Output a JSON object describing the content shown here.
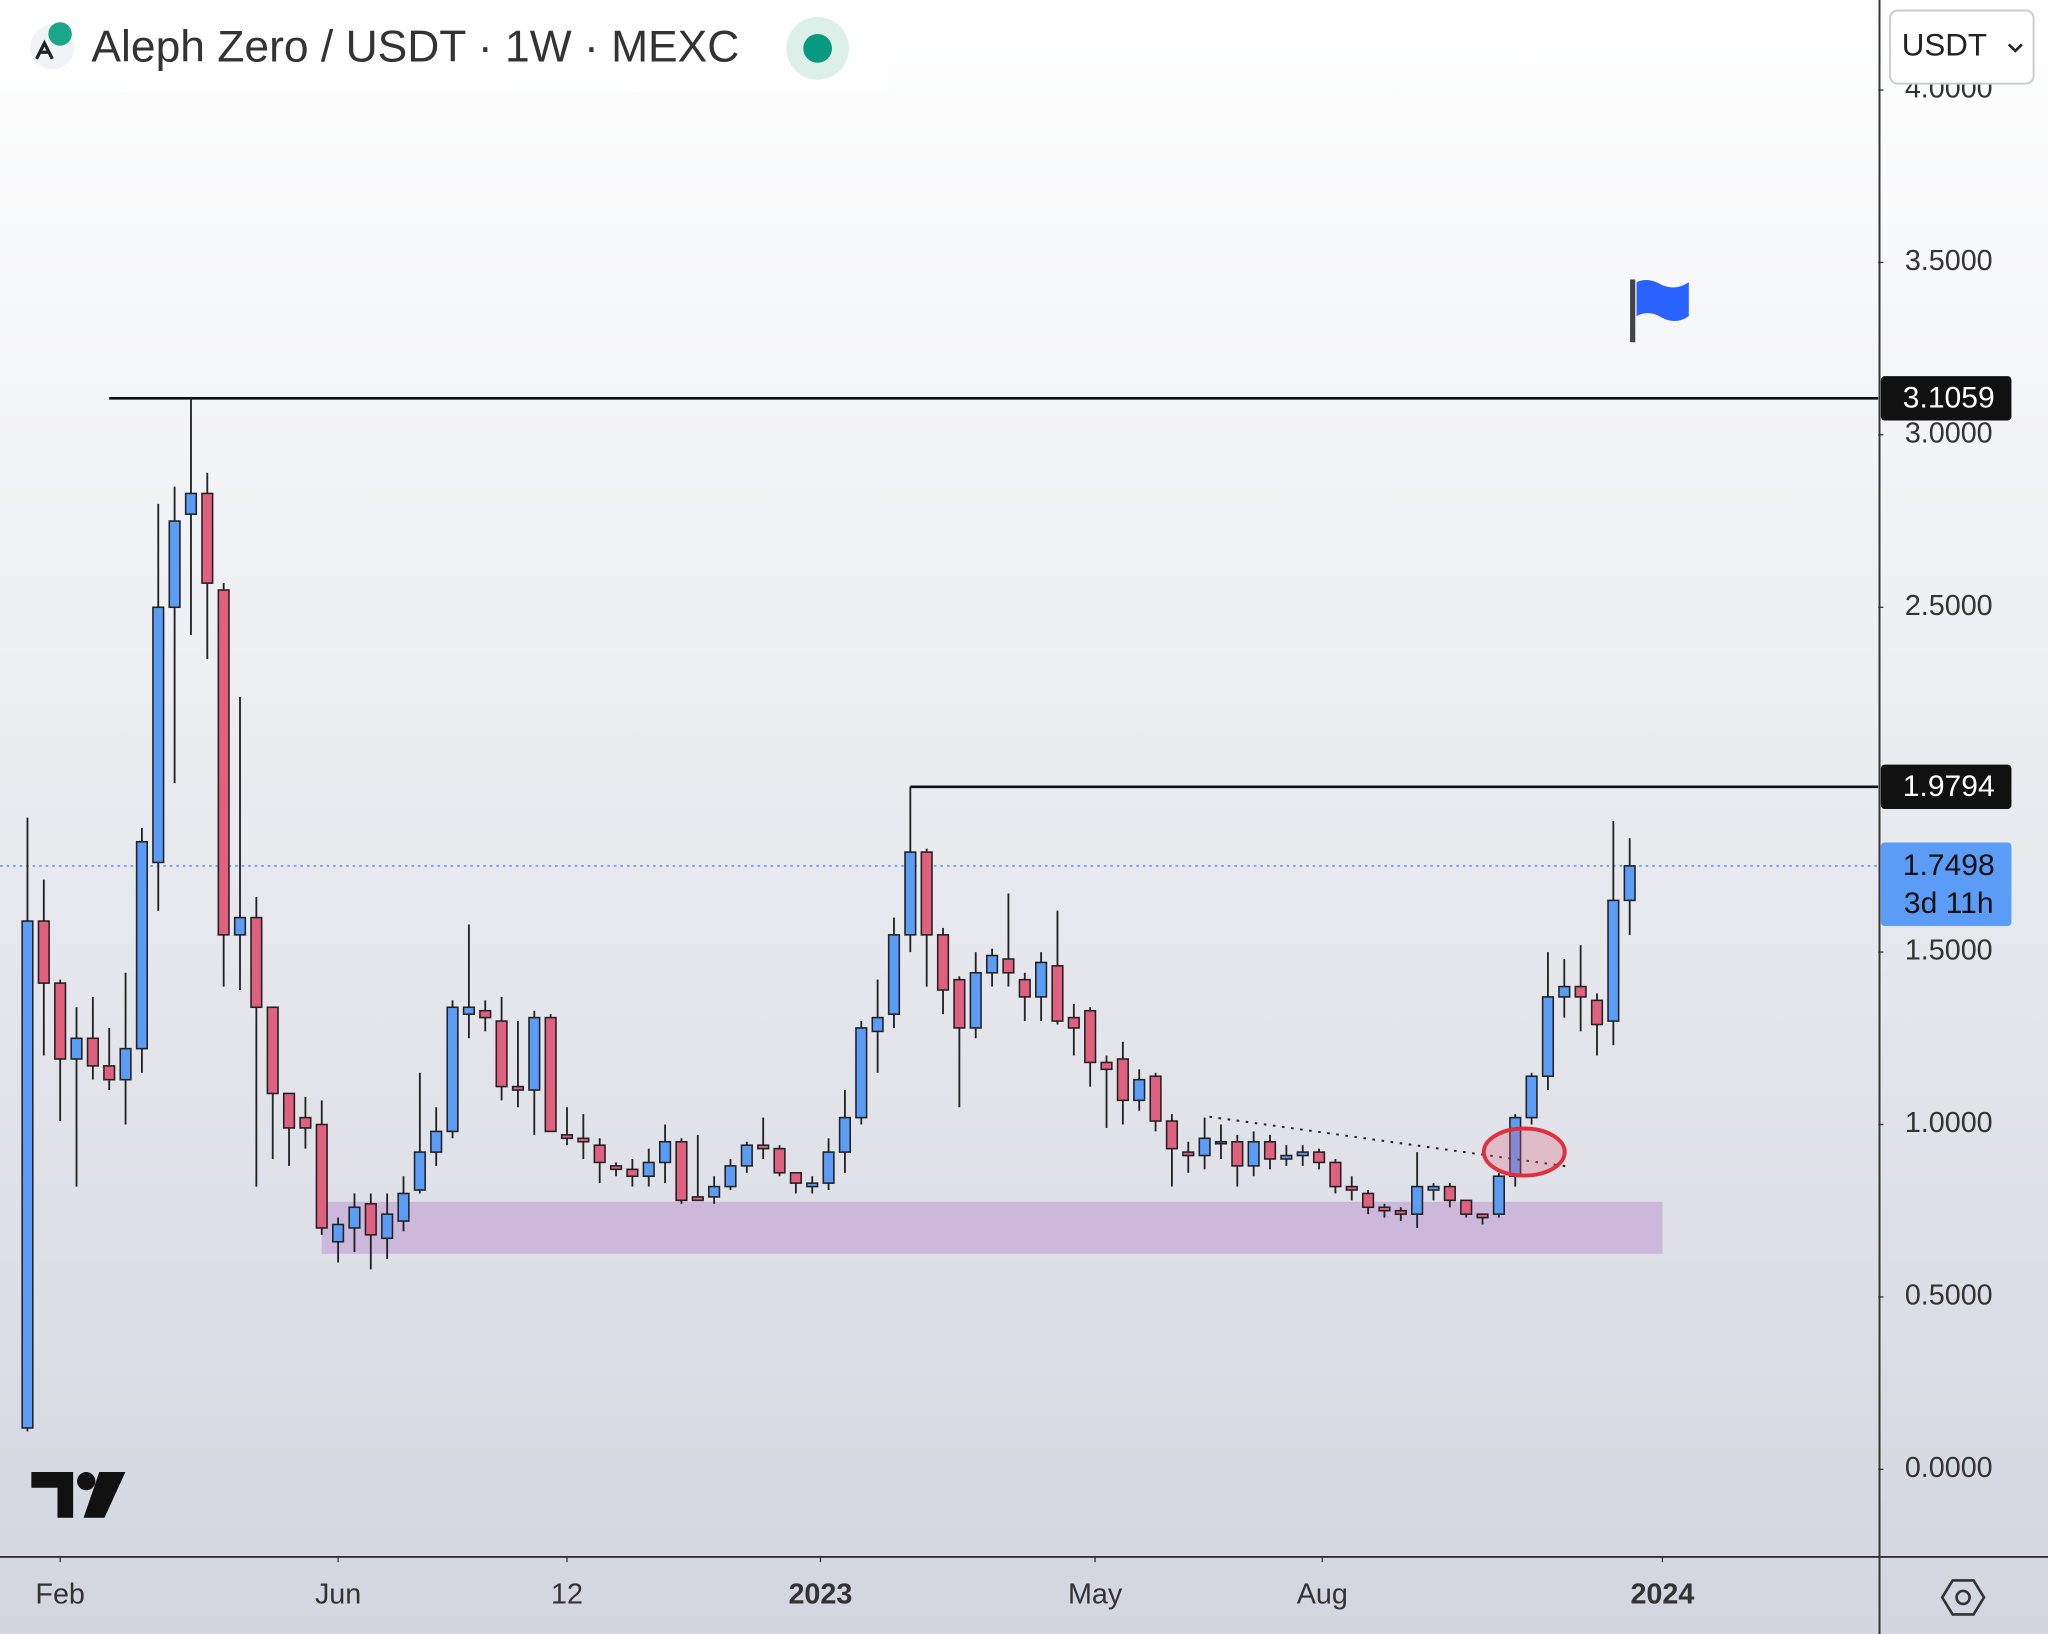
{
  "chart_data": {
    "type": "candlestick",
    "title": "Aleph Zero / USDT · 1W · MEXC",
    "currency": "USDT",
    "up_color": "#5b9cf6",
    "down_color": "#e0617f",
    "xlim": [
      -1.68,
      113.2
    ],
    "xticks": [
      {
        "value": 2,
        "label": "Feb"
      },
      {
        "value": 19,
        "label": "Jun"
      },
      {
        "value": 33,
        "label": "12"
      },
      {
        "value": 48.5,
        "label": "2023",
        "bold": true
      },
      {
        "value": 65.3,
        "label": "May"
      },
      {
        "value": 79.2,
        "label": "Aug"
      },
      {
        "value": 100,
        "label": "2024",
        "bold": true
      }
    ],
    "ylim": [
      -0.254,
      4.261
    ],
    "yticks": [
      {
        "value": 0,
        "label": "0.0000"
      },
      {
        "value": 0.5,
        "label": "0.5000"
      },
      {
        "value": 1,
        "label": "1.0000"
      },
      {
        "value": 1.5,
        "label": "1.5000"
      },
      {
        "value": 2.5,
        "label": "2.5000"
      },
      {
        "value": 3,
        "label": "3.0000"
      },
      {
        "value": 3.5,
        "label": "3.5000"
      },
      {
        "value": 4,
        "label": "4.0000"
      }
    ],
    "open": [
      0.12,
      1.59,
      1.41,
      1.19,
      1.25,
      1.17,
      1.13,
      1.22,
      1.76,
      2.5,
      2.77,
      2.83,
      2.55,
      1.55,
      1.6,
      1.34,
      1.09,
      1.02,
      1.0,
      0.66,
      0.7,
      0.77,
      0.67,
      0.72,
      0.81,
      0.92,
      0.98,
      1.32,
      1.33,
      1.3,
      1.11,
      1.1,
      1.31,
      0.97,
      0.96,
      0.94,
      0.88,
      0.87,
      0.85,
      0.89,
      0.95,
      0.79,
      0.79,
      0.82,
      0.88,
      0.94,
      0.93,
      0.86,
      0.82,
      0.83,
      0.92,
      1.02,
      1.27,
      1.32,
      1.55,
      1.79,
      1.55,
      1.42,
      1.28,
      1.44,
      1.48,
      1.42,
      1.37,
      1.46,
      1.31,
      1.33,
      1.18,
      1.19,
      1.07,
      1.14,
      1.01,
      0.92,
      0.91,
      0.95,
      0.95,
      0.88,
      0.95,
      0.9,
      0.91,
      0.92,
      0.89,
      0.82,
      0.8,
      0.76,
      0.75,
      0.74,
      0.81,
      0.82,
      0.78,
      0.74,
      0.74,
      0.85,
      1.02,
      1.14,
      1.37,
      1.4,
      1.36,
      1.3,
      1.65
    ],
    "high": [
      1.89,
      1.71,
      1.42,
      1.34,
      1.37,
      1.28,
      1.44,
      1.86,
      2.8,
      2.85,
      3.11,
      2.89,
      2.57,
      2.24,
      1.66,
      1.34,
      1.09,
      1.08,
      1.07,
      0.73,
      0.8,
      0.8,
      0.8,
      0.85,
      1.15,
      1.05,
      1.36,
      1.58,
      1.36,
      1.37,
      1.3,
      1.33,
      1.32,
      1.05,
      1.03,
      0.96,
      0.89,
      0.9,
      0.93,
      1.0,
      0.96,
      0.97,
      0.85,
      0.9,
      0.95,
      1.02,
      0.94,
      0.86,
      0.85,
      0.96,
      1.1,
      1.3,
      1.42,
      1.6,
      1.98,
      1.8,
      1.57,
      1.43,
      1.5,
      1.51,
      1.67,
      1.44,
      1.5,
      1.62,
      1.35,
      1.34,
      1.2,
      1.24,
      1.16,
      1.15,
      1.03,
      0.95,
      1.02,
      1.0,
      0.97,
      0.98,
      0.97,
      0.94,
      0.94,
      0.93,
      0.9,
      0.85,
      0.81,
      0.77,
      0.76,
      0.92,
      0.83,
      0.83,
      0.78,
      0.74,
      0.86,
      1.03,
      1.15,
      1.5,
      1.48,
      1.52,
      1.38,
      1.88,
      1.83
    ],
    "low": [
      0.11,
      1.2,
      1.01,
      0.82,
      1.13,
      1.1,
      1.0,
      1.15,
      1.62,
      1.99,
      2.42,
      2.35,
      1.4,
      1.39,
      0.82,
      0.9,
      0.88,
      0.93,
      0.68,
      0.6,
      0.63,
      0.58,
      0.61,
      0.69,
      0.8,
      0.88,
      0.96,
      1.25,
      1.27,
      1.07,
      1.05,
      0.97,
      0.98,
      0.94,
      0.9,
      0.83,
      0.85,
      0.82,
      0.82,
      0.83,
      0.77,
      0.78,
      0.77,
      0.81,
      0.86,
      0.9,
      0.85,
      0.8,
      0.8,
      0.81,
      0.86,
      1.0,
      1.15,
      1.28,
      1.5,
      1.4,
      1.32,
      1.05,
      1.25,
      1.4,
      1.4,
      1.3,
      1.3,
      1.29,
      1.2,
      1.11,
      0.99,
      1.0,
      1.04,
      0.98,
      0.82,
      0.86,
      0.87,
      0.9,
      0.82,
      0.85,
      0.87,
      0.88,
      0.88,
      0.87,
      0.8,
      0.78,
      0.74,
      0.73,
      0.72,
      0.7,
      0.78,
      0.76,
      0.73,
      0.71,
      0.73,
      0.82,
      1.0,
      1.1,
      1.31,
      1.27,
      1.2,
      1.23,
      1.55
    ],
    "close": [
      1.59,
      1.41,
      1.19,
      1.25,
      1.17,
      1.13,
      1.22,
      1.82,
      2.5,
      2.75,
      2.83,
      2.57,
      1.55,
      1.6,
      1.34,
      1.09,
      0.99,
      0.99,
      0.7,
      0.71,
      0.76,
      0.68,
      0.74,
      0.8,
      0.92,
      0.98,
      1.34,
      1.34,
      1.31,
      1.11,
      1.1,
      1.31,
      0.98,
      0.96,
      0.95,
      0.89,
      0.87,
      0.85,
      0.89,
      0.95,
      0.78,
      0.78,
      0.82,
      0.88,
      0.94,
      0.93,
      0.86,
      0.83,
      0.83,
      0.92,
      1.02,
      1.28,
      1.31,
      1.55,
      1.79,
      1.55,
      1.39,
      1.28,
      1.44,
      1.49,
      1.44,
      1.37,
      1.47,
      1.3,
      1.28,
      1.18,
      1.16,
      1.07,
      1.13,
      1.01,
      0.93,
      0.91,
      0.96,
      0.95,
      0.88,
      0.95,
      0.9,
      0.91,
      0.92,
      0.89,
      0.82,
      0.81,
      0.76,
      0.75,
      0.74,
      0.82,
      0.82,
      0.78,
      0.74,
      0.73,
      0.85,
      1.02,
      1.14,
      1.37,
      1.4,
      1.37,
      1.29,
      1.65,
      1.75
    ],
    "levels": [
      {
        "value": 3.1059,
        "from": 5
      },
      {
        "value": 1.9794,
        "from": 54
      }
    ],
    "last_price": 1.7498,
    "countdown": "3d 11h",
    "zone": {
      "low": 0.625,
      "high": 0.776,
      "from": 18,
      "to": 100,
      "color": "#c9b0d8"
    }
  }
}
